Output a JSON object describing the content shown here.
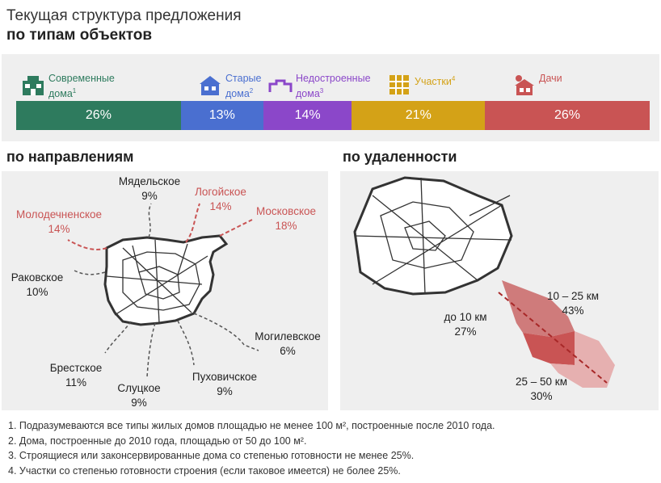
{
  "title": {
    "line1": "Текущая структура предложения",
    "line2": "по типам объектов"
  },
  "colors": {
    "modern": "#2e7b5e",
    "old": "#4a6fd0",
    "unfinished": "#8b47c9",
    "plots": "#d4a217",
    "dachas": "#c95454"
  },
  "chart_data": [
    {
      "type": "bar",
      "title": "по типам объектов",
      "categories": [
        "Современные дома¹",
        "Старые дома²",
        "Недостроенные дома³",
        "Участки⁴",
        "Дачи"
      ],
      "values": [
        26,
        13,
        14,
        21,
        26
      ],
      "unit": "%"
    },
    {
      "type": "map",
      "title": "по направлениям",
      "categories": [
        "Мядельское",
        "Логойское",
        "Московское",
        "Молодечненское",
        "Раковское",
        "Могилевское",
        "Брестское",
        "Слуцкое",
        "Пуховичское"
      ],
      "values": [
        9,
        14,
        18,
        14,
        10,
        6,
        11,
        9,
        9
      ],
      "unit": "%"
    },
    {
      "type": "map",
      "title": "по удаленности",
      "categories": [
        "до 10 км",
        "10 – 25 км",
        "25 – 50 км"
      ],
      "values": [
        27,
        43,
        30
      ],
      "unit": "%"
    }
  ],
  "legend": [
    {
      "name": "Современные",
      "name2": "дома",
      "sup": "1",
      "icon": "modern-house-icon"
    },
    {
      "name": "Старые",
      "name2": "дома",
      "sup": "2",
      "icon": "old-house-icon"
    },
    {
      "name": "Недостроенные",
      "name2": "дома",
      "sup": "3",
      "icon": "unfinished-house-icon"
    },
    {
      "name": "Участки",
      "name2": "",
      "sup": "4",
      "icon": "plot-icon"
    },
    {
      "name": "Дачи",
      "name2": "",
      "sup": "",
      "icon": "dacha-icon"
    }
  ],
  "bar_labels": [
    "26%",
    "13%",
    "14%",
    "21%",
    "26%"
  ],
  "directions_title": "по направлениям",
  "distance_title": "по удаленности",
  "directions": {
    "myadel": {
      "name": "Мядельское",
      "pct": "9%"
    },
    "logoisk": {
      "name": "Логойское",
      "pct": "14%"
    },
    "moscow": {
      "name": "Московское",
      "pct": "18%"
    },
    "molodechno": {
      "name": "Молодечненское",
      "pct": "14%"
    },
    "rakov": {
      "name": "Раковское",
      "pct": "10%"
    },
    "mogilev": {
      "name": "Могилевское",
      "pct": "6%"
    },
    "brest": {
      "name": "Брестское",
      "pct": "11%"
    },
    "slutsk": {
      "name": "Слуцкое",
      "pct": "9%"
    },
    "puhovichi": {
      "name": "Пуховичское",
      "pct": "9%"
    }
  },
  "distance": {
    "near": {
      "name": "до 10 км",
      "pct": "27%"
    },
    "mid": {
      "name": "10 – 25 км",
      "pct": "43%"
    },
    "far": {
      "name": "25 – 50 км",
      "pct": "30%"
    }
  },
  "footnotes": [
    "1. Подразумеваются все типы жилых домов площадью не менее 100 м², построенные после 2010 года.",
    "2. Дома, построенные до 2010 года, площадью от 50 до 100 м².",
    "3. Строящиеся или законсервированные дома со степенью готовности не менее 25%.",
    "4. Участки со степенью готовности строения (если таковое имеется) не более 25%."
  ]
}
